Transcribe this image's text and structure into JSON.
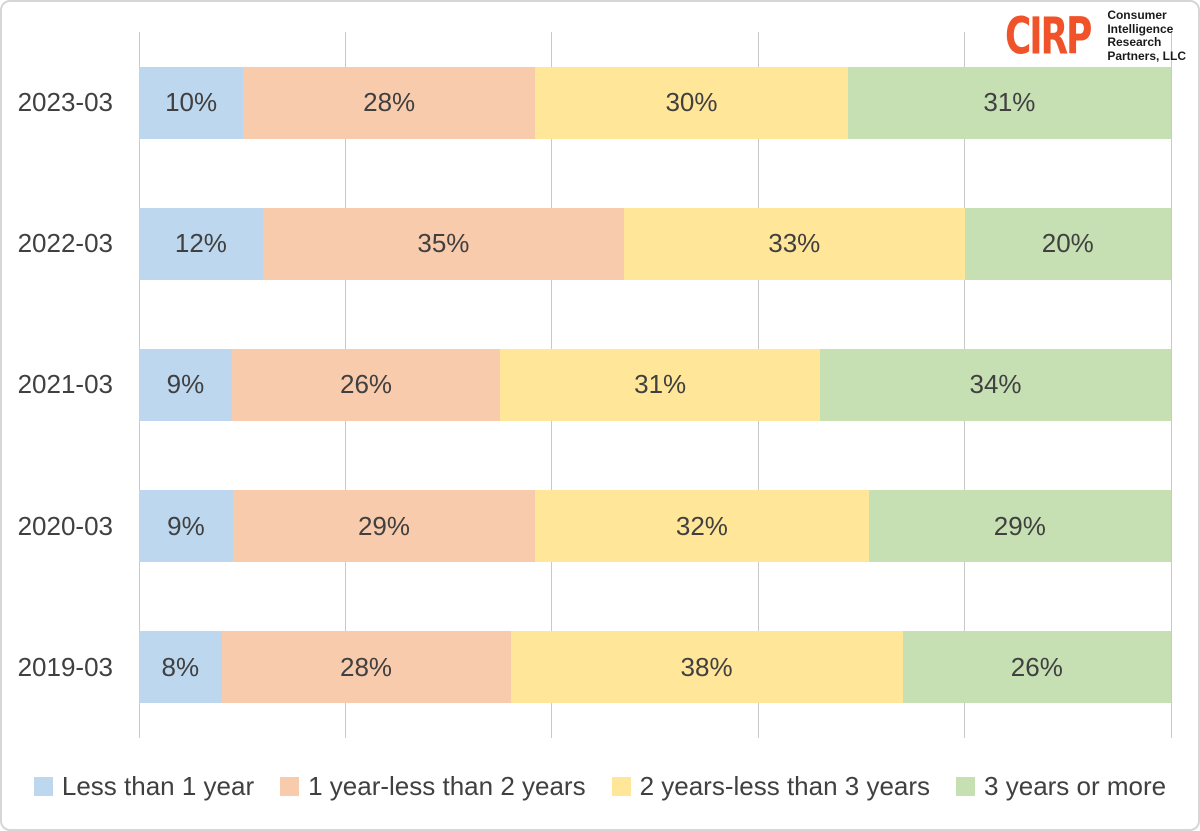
{
  "logo": {
    "brand": "CIRP",
    "tagline_lines": [
      "Consumer",
      "Intelligence",
      "Research",
      "Partners, LLC"
    ]
  },
  "colors": {
    "grid": "#c9c9c9",
    "text": "#404040",
    "border": "#d6d6d6",
    "logo": "#f0532a"
  },
  "chart_data": {
    "type": "bar",
    "orientation": "horizontal",
    "stacked": true,
    "percent_stacked": true,
    "categories": [
      "2023-03",
      "2022-03",
      "2021-03",
      "2020-03",
      "2019-03"
    ],
    "series": [
      {
        "name": "Less than 1 year",
        "color": "#bdd7ee",
        "values": [
          10,
          12,
          9,
          9,
          8
        ]
      },
      {
        "name": "1 year-less than 2 years",
        "color": "#f8cbad",
        "values": [
          28,
          35,
          26,
          29,
          28
        ]
      },
      {
        "name": "2 years-less than 3 years",
        "color": "#ffe699",
        "values": [
          30,
          33,
          31,
          32,
          38
        ]
      },
      {
        "name": "3 years or more",
        "color": "#c6e0b4",
        "values": [
          31,
          20,
          34,
          29,
          26
        ]
      }
    ],
    "value_suffix": "%",
    "xlim": [
      0,
      100
    ],
    "gridlines": [
      0,
      20,
      40,
      60,
      80,
      100
    ],
    "grid_on": true,
    "legend_position": "bottom",
    "title": "",
    "xlabel": "",
    "ylabel": ""
  }
}
